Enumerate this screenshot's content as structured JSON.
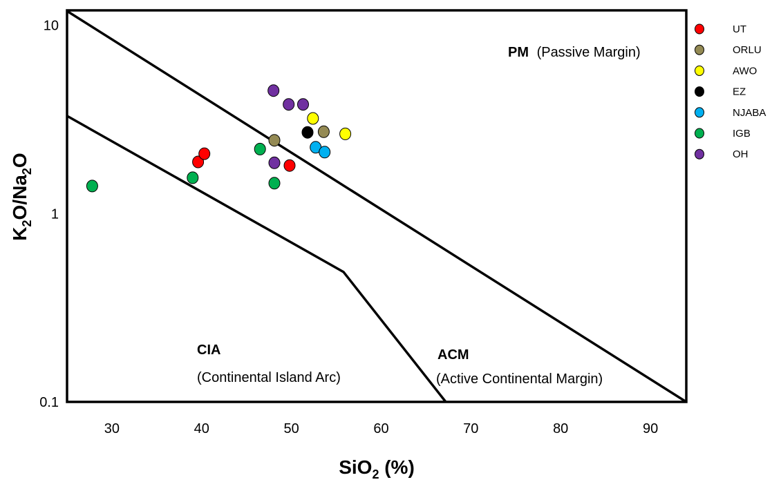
{
  "chart_data": {
    "type": "scatter",
    "xlabel": "SiO2 (%)",
    "ylabel": "K2O/Na2O",
    "xlim": [
      25,
      94
    ],
    "ylim": [
      0.1,
      12
    ],
    "yscale": "log",
    "x_ticks": [
      30,
      40,
      50,
      60,
      70,
      80,
      90
    ],
    "y_ticks": [
      {
        "value": 10,
        "label": "10"
      },
      {
        "value": 1,
        "label": "1"
      },
      {
        "value": 0.1,
        "label": "0.1"
      }
    ],
    "grid": false,
    "legend_position": "right",
    "regions": [
      {
        "bold": "PM",
        "text": "(Passive Margin)"
      },
      {
        "bold": "ACM",
        "text": "(Active Continental Margin)"
      },
      {
        "bold": "CIA",
        "text": "(Continental Island Arc)"
      }
    ],
    "boundaries": [
      {
        "name": "PM-ACM",
        "points": [
          [
            25,
            11.9
          ],
          [
            94,
            0.1
          ]
        ]
      },
      {
        "name": "ACM-CIA",
        "points": [
          [
            25,
            3.3
          ],
          [
            55.8,
            0.49
          ],
          [
            67.2,
            0.1
          ]
        ]
      }
    ],
    "series": [
      {
        "name": "UT",
        "color": "#ff0000",
        "points": [
          [
            39.6,
            1.88
          ],
          [
            40.3,
            2.08
          ],
          [
            49.8,
            1.8
          ]
        ]
      },
      {
        "name": "ORLU",
        "color": "#948a54",
        "points": [
          [
            48.1,
            2.45
          ],
          [
            53.6,
            2.72
          ]
        ]
      },
      {
        "name": "AWO",
        "color": "#ffff00",
        "points": [
          [
            52.4,
            3.2
          ],
          [
            56.0,
            2.65
          ]
        ]
      },
      {
        "name": "EZ",
        "color": "#000000",
        "points": [
          [
            51.8,
            2.7
          ]
        ]
      },
      {
        "name": "NJABA",
        "color": "#00b0f0",
        "points": [
          [
            52.7,
            2.25
          ],
          [
            53.7,
            2.12
          ]
        ]
      },
      {
        "name": "IGB",
        "color": "#00b050",
        "points": [
          [
            27.8,
            1.4
          ],
          [
            39.0,
            1.55
          ],
          [
            46.5,
            2.2
          ],
          [
            48.1,
            1.45
          ]
        ]
      },
      {
        "name": "OH",
        "color": "#7030a0",
        "points": [
          [
            48.0,
            4.5
          ],
          [
            49.7,
            3.8
          ],
          [
            51.3,
            3.8
          ],
          [
            48.1,
            1.86
          ]
        ]
      }
    ]
  }
}
